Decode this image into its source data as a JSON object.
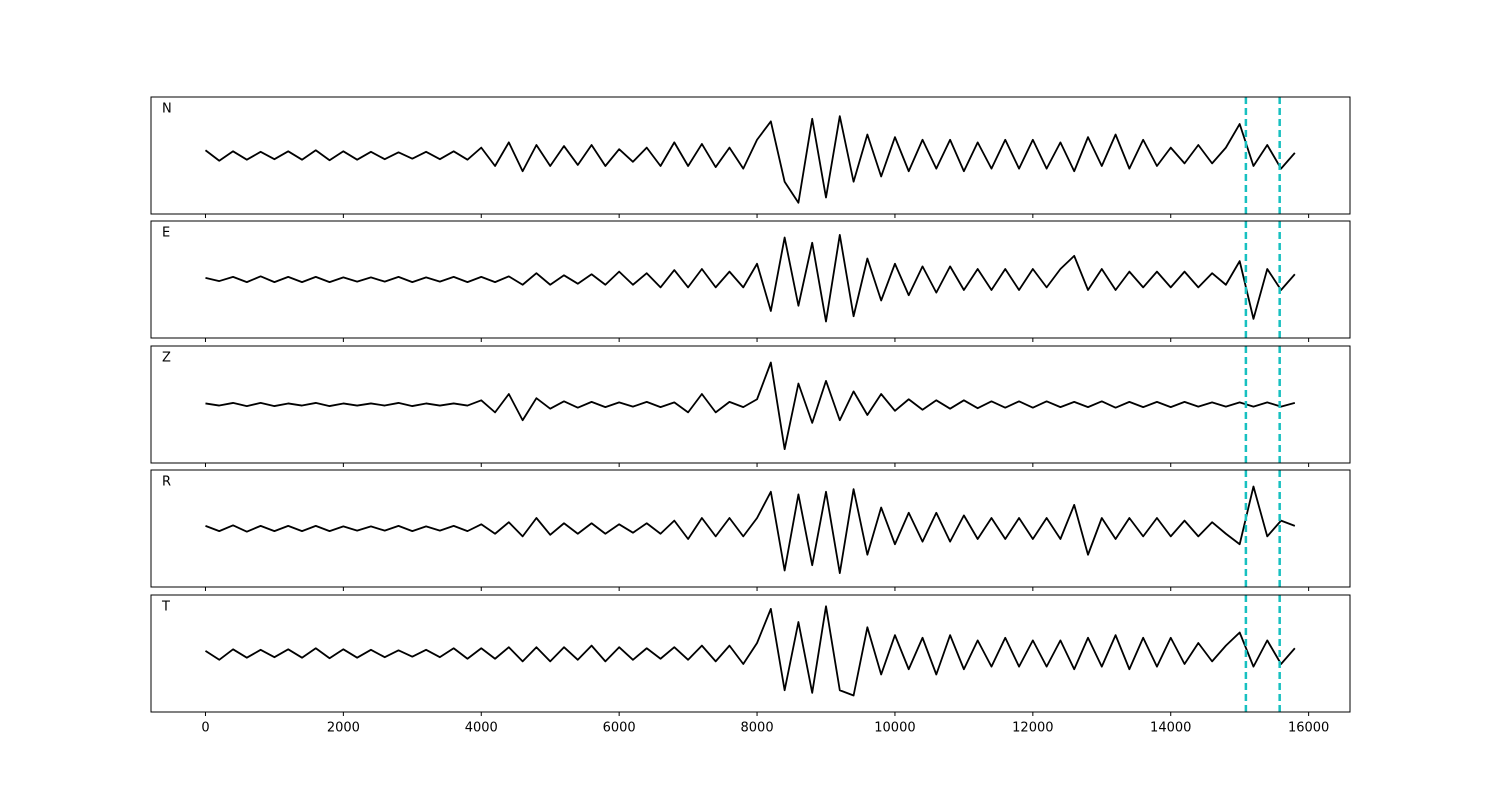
{
  "chart_data": {
    "type": "line",
    "x": [
      0,
      200,
      400,
      600,
      800,
      1000,
      1200,
      1400,
      1600,
      1800,
      2000,
      2200,
      2400,
      2600,
      2800,
      3000,
      3200,
      3400,
      3600,
      3800,
      4000,
      4200,
      4400,
      4600,
      4800,
      5000,
      5200,
      5400,
      5600,
      5800,
      6000,
      6200,
      6400,
      6600,
      6800,
      7000,
      7200,
      7400,
      7600,
      7800,
      8000,
      8200,
      8400,
      8600,
      8800,
      9000,
      9200,
      9400,
      9600,
      9800,
      10000,
      10200,
      10400,
      10600,
      10800,
      11000,
      11200,
      11400,
      11600,
      11800,
      12000,
      12200,
      12400,
      12600,
      12800,
      13000,
      13200,
      13400,
      13600,
      13800,
      14000,
      14200,
      14400,
      14600,
      14800,
      15000,
      15200,
      15400,
      15600,
      15800
    ],
    "series": [
      {
        "name": "N",
        "color": "#000000",
        "values": [
          0.1,
          -0.1,
          0.08,
          -0.08,
          0.07,
          -0.07,
          0.08,
          -0.08,
          0.1,
          -0.09,
          0.08,
          -0.08,
          0.07,
          -0.07,
          0.06,
          -0.06,
          0.07,
          -0.07,
          0.08,
          -0.08,
          0.15,
          -0.2,
          0.25,
          -0.3,
          0.2,
          -0.2,
          0.18,
          -0.18,
          0.2,
          -0.2,
          0.12,
          -0.12,
          0.15,
          -0.2,
          0.25,
          -0.2,
          0.22,
          -0.22,
          0.15,
          -0.25,
          0.3,
          0.65,
          -0.5,
          -0.9,
          0.7,
          -0.8,
          0.75,
          -0.5,
          0.4,
          -0.4,
          0.35,
          -0.3,
          0.3,
          -0.25,
          0.3,
          -0.3,
          0.25,
          -0.25,
          0.3,
          -0.25,
          0.3,
          -0.25,
          0.25,
          -0.3,
          0.35,
          -0.2,
          0.4,
          -0.25,
          0.3,
          -0.2,
          0.15,
          -0.15,
          0.2,
          -0.15,
          0.15,
          0.6,
          -0.2,
          0.2,
          -0.25,
          0.05
        ]
      },
      {
        "name": "E",
        "color": "#000000",
        "values": [
          0.03,
          -0.03,
          0.05,
          -0.05,
          0.06,
          -0.05,
          0.05,
          -0.05,
          0.05,
          -0.05,
          0.04,
          -0.04,
          0.04,
          -0.04,
          0.05,
          -0.05,
          0.04,
          -0.04,
          0.05,
          -0.05,
          0.05,
          -0.05,
          0.06,
          -0.1,
          0.12,
          -0.1,
          0.08,
          -0.08,
          0.1,
          -0.1,
          0.15,
          -0.1,
          0.12,
          -0.15,
          0.18,
          -0.15,
          0.2,
          -0.15,
          0.15,
          -0.15,
          0.3,
          -0.6,
          0.8,
          -0.5,
          0.7,
          -0.8,
          0.85,
          -0.7,
          0.4,
          -0.4,
          0.3,
          -0.3,
          0.25,
          -0.25,
          0.25,
          -0.2,
          0.2,
          -0.2,
          0.2,
          -0.2,
          0.2,
          -0.15,
          0.2,
          0.45,
          -0.2,
          0.2,
          -0.2,
          0.15,
          -0.15,
          0.15,
          -0.15,
          0.15,
          -0.15,
          0.12,
          -0.1,
          0.35,
          -0.75,
          0.2,
          -0.2,
          0.1
        ]
      },
      {
        "name": "Z",
        "color": "#000000",
        "values": [
          0.02,
          -0.02,
          0.03,
          -0.03,
          0.03,
          -0.03,
          0.02,
          -0.02,
          0.03,
          -0.03,
          0.02,
          -0.02,
          0.02,
          -0.02,
          0.03,
          -0.03,
          0.02,
          -0.02,
          0.02,
          -0.02,
          0.08,
          -0.15,
          0.2,
          -0.3,
          0.12,
          -0.08,
          0.06,
          -0.06,
          0.05,
          -0.05,
          0.04,
          -0.04,
          0.05,
          -0.05,
          0.04,
          -0.15,
          0.2,
          -0.15,
          0.05,
          -0.05,
          0.1,
          0.8,
          -0.85,
          0.4,
          -0.35,
          0.45,
          -0.3,
          0.25,
          -0.2,
          0.2,
          -0.12,
          0.1,
          -0.1,
          0.08,
          -0.08,
          0.08,
          -0.07,
          0.06,
          -0.06,
          0.06,
          -0.06,
          0.06,
          -0.05,
          0.05,
          -0.05,
          0.06,
          -0.06,
          0.05,
          -0.05,
          0.05,
          -0.05,
          0.05,
          -0.04,
          0.04,
          -0.04,
          0.04,
          -0.04,
          0.04,
          -0.04,
          0.03
        ]
      },
      {
        "name": "R",
        "color": "#000000",
        "values": [
          0.05,
          -0.05,
          0.06,
          -0.06,
          0.05,
          -0.05,
          0.05,
          -0.05,
          0.05,
          -0.05,
          0.04,
          -0.04,
          0.04,
          -0.04,
          0.05,
          -0.05,
          0.04,
          -0.04,
          0.05,
          -0.05,
          0.08,
          -0.1,
          0.12,
          -0.15,
          0.2,
          -0.12,
          0.1,
          -0.1,
          0.1,
          -0.1,
          0.08,
          -0.08,
          0.1,
          -0.1,
          0.15,
          -0.2,
          0.2,
          -0.15,
          0.2,
          -0.15,
          0.2,
          0.7,
          -0.8,
          0.65,
          -0.7,
          0.7,
          -0.85,
          0.75,
          -0.5,
          0.4,
          -0.3,
          0.3,
          -0.25,
          0.3,
          -0.25,
          0.25,
          -0.2,
          0.2,
          -0.2,
          0.2,
          -0.2,
          0.2,
          -0.2,
          0.45,
          -0.5,
          0.2,
          -0.2,
          0.2,
          -0.15,
          0.2,
          -0.15,
          0.15,
          -0.15,
          0.12,
          -0.1,
          -0.3,
          0.8,
          -0.15,
          0.15,
          0.05
        ]
      },
      {
        "name": "T",
        "color": "#000000",
        "values": [
          0.05,
          -0.12,
          0.08,
          -0.08,
          0.07,
          -0.07,
          0.08,
          -0.08,
          0.1,
          -0.09,
          0.08,
          -0.08,
          0.07,
          -0.07,
          0.06,
          -0.06,
          0.07,
          -0.07,
          0.1,
          -0.1,
          0.1,
          -0.1,
          0.12,
          -0.15,
          0.12,
          -0.15,
          0.12,
          -0.12,
          0.15,
          -0.15,
          0.12,
          -0.12,
          0.1,
          -0.1,
          0.12,
          -0.12,
          0.15,
          -0.15,
          0.15,
          -0.2,
          0.2,
          0.85,
          -0.7,
          0.6,
          -0.75,
          0.9,
          -0.7,
          -0.8,
          0.5,
          -0.4,
          0.35,
          -0.3,
          0.3,
          -0.4,
          0.35,
          -0.3,
          0.25,
          -0.25,
          0.3,
          -0.25,
          0.25,
          -0.25,
          0.25,
          -0.3,
          0.3,
          -0.25,
          0.35,
          -0.3,
          0.3,
          -0.25,
          0.3,
          -0.2,
          0.2,
          -0.15,
          0.15,
          0.4,
          -0.25,
          0.25,
          -0.2,
          0.1
        ]
      }
    ],
    "vlines": [
      15090,
      15580
    ],
    "vline_color": "#17c0c0",
    "xlim": [
      -790,
      16600
    ],
    "ylim": [
      -1,
      1
    ],
    "xticks": [
      0,
      2000,
      4000,
      6000,
      8000,
      10000,
      12000,
      14000,
      16000
    ]
  }
}
